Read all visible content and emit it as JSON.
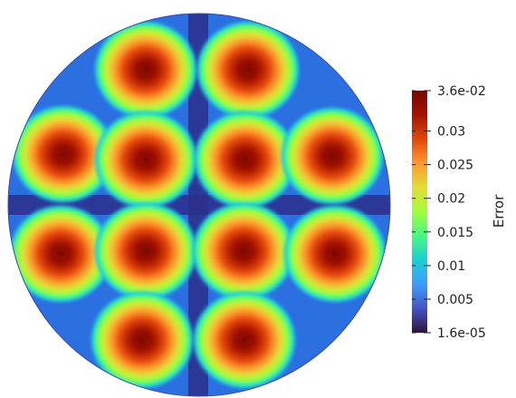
{
  "colorbar": {
    "title": "Error",
    "tick_labels": [
      "3.6e-02",
      "0.03",
      "0.025",
      "0.02",
      "0.015",
      "0.01",
      "0.005",
      "1.6e-05"
    ],
    "tick_values": [
      0.036,
      0.03,
      0.025,
      0.02,
      0.015,
      0.01,
      0.005,
      1.6e-05
    ],
    "range": [
      1.6e-05,
      0.036
    ],
    "colormap": "turbo",
    "colors": [
      "#30123b",
      "#4454c4",
      "#3e9bfe",
      "#1bcfd4",
      "#46f884",
      "#a2fc3c",
      "#e1dd37",
      "#fe9b2d",
      "#e4460a",
      "#a31301",
      "#7a0403"
    ]
  },
  "field": {
    "shape": "disk",
    "background_value": 0.006,
    "peak_value": 0.036,
    "hotspot_count": 12
  }
}
